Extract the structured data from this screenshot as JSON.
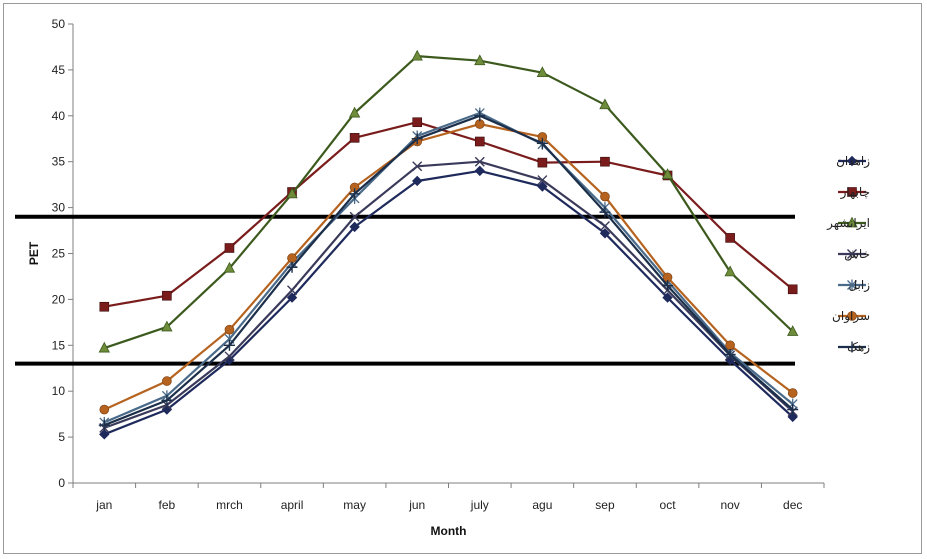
{
  "chart_data": {
    "type": "line",
    "title": "",
    "xlabel": "Month",
    "ylabel": "PET",
    "ylim": [
      0,
      50
    ],
    "yticks": [
      "0",
      "5",
      "10",
      "15",
      "20",
      "25",
      "30",
      "35",
      "40",
      "45",
      "50"
    ],
    "categories": [
      "jan",
      "feb",
      "mrch",
      "april",
      "may",
      "jun",
      "july",
      "agu",
      "sep",
      "oct",
      "nov",
      "dec"
    ],
    "grid": false,
    "legend_position": "right",
    "reference_lines": [
      29,
      13
    ],
    "series": [
      {
        "name": "زاهدان",
        "color": "#1f2a5c",
        "marker": "diamond",
        "values": [
          5.3,
          8.0,
          13.4,
          20.2,
          27.9,
          32.9,
          34.0,
          32.3,
          27.2,
          20.2,
          13.4,
          7.2
        ]
      },
      {
        "name": "چابهار",
        "color": "#7a1c1c",
        "marker": "square",
        "values": [
          19.2,
          20.4,
          25.6,
          31.7,
          37.6,
          39.3,
          37.2,
          34.9,
          35.0,
          33.5,
          26.7,
          21.1
        ]
      },
      {
        "name": "ایرانشهر",
        "color": "#3d5a1e",
        "marker": "triangle",
        "values": [
          14.7,
          17.0,
          23.4,
          31.5,
          40.3,
          46.5,
          46.0,
          44.7,
          41.2,
          33.6,
          23.0,
          16.5
        ]
      },
      {
        "name": "خاش",
        "color": "#3a3a5a",
        "marker": "x",
        "values": [
          6.0,
          8.5,
          13.8,
          21.0,
          29.0,
          34.5,
          35.0,
          33.0,
          28.0,
          21.0,
          13.9,
          7.8
        ]
      },
      {
        "name": "زابل",
        "color": "#4a6a8a",
        "marker": "asterisk",
        "values": [
          6.6,
          9.5,
          15.7,
          24.0,
          31.0,
          37.8,
          40.3,
          36.9,
          30.0,
          22.0,
          14.2,
          8.6
        ]
      },
      {
        "name": "سراوان",
        "color": "#b5631f",
        "marker": "circle",
        "values": [
          8.0,
          11.1,
          16.7,
          24.5,
          32.2,
          37.2,
          39.1,
          37.7,
          31.2,
          22.4,
          15.0,
          9.8
        ]
      },
      {
        "name": "زهک",
        "color": "#1c2f4a",
        "marker": "plus",
        "values": [
          6.3,
          9.0,
          15.0,
          23.5,
          31.5,
          37.5,
          40.0,
          37.0,
          29.5,
          21.5,
          14.0,
          8.0
        ]
      }
    ]
  }
}
